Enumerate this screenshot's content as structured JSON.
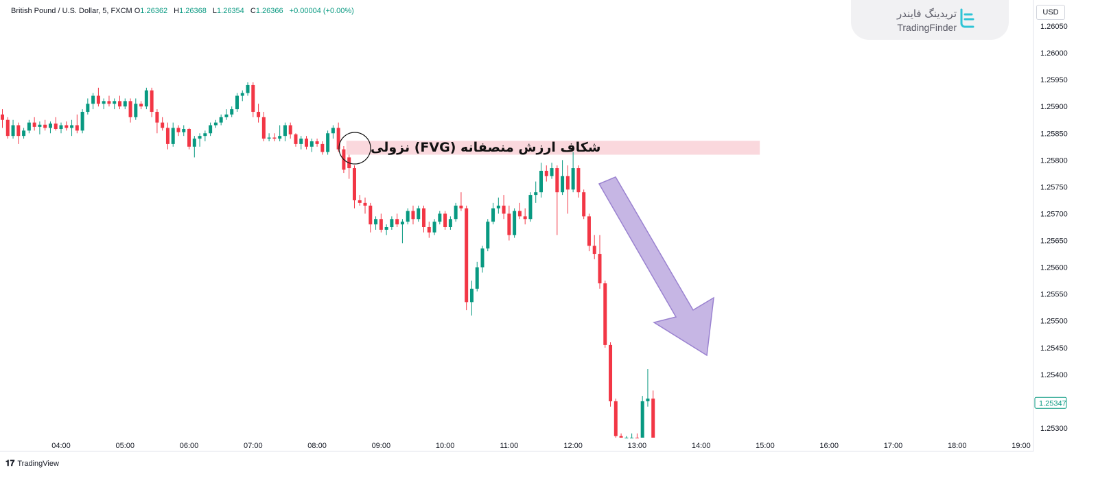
{
  "header": {
    "symbol": "British Pound / U.S. Dollar, 5, FXCM",
    "open_label": "O",
    "open": "1.26362",
    "high_label": "H",
    "high": "1.26368",
    "low_label": "L",
    "low": "1.26354",
    "close_label": "C",
    "close": "1.26366",
    "change": "+0.00004 (+0.00%)"
  },
  "brand": {
    "name_fa": "تریدینگ فایندر",
    "name_en": "TradingFinder"
  },
  "currency": "USD",
  "footer": {
    "logo": "TradingView"
  },
  "annotation": {
    "text": "شکاف ارزش منصفانه (FVG) نزولی"
  },
  "colors": {
    "up": "#089981",
    "down": "#f23645",
    "fvg": "#f8c8cf",
    "arrow": "#b39ddb",
    "grid": "#ffffff"
  },
  "chart_data": {
    "type": "candlestick",
    "ylim": [
      1.2528,
      1.2608
    ],
    "y_ticks": [
      "1.26050",
      "1.26000",
      "1.25950",
      "1.25900",
      "1.25850",
      "1.25800",
      "1.25750",
      "1.25700",
      "1.25650",
      "1.25600",
      "1.25550",
      "1.25500",
      "1.25450",
      "1.25400",
      "1.25300"
    ],
    "x_ticks": [
      "04:00",
      "05:00",
      "06:00",
      "07:00",
      "08:00",
      "09:00",
      "10:00",
      "11:00",
      "12:00",
      "13:00",
      "14:00",
      "15:00",
      "16:00",
      "17:00",
      "18:00",
      "19:00"
    ],
    "last_price": "1.25347",
    "fvg_zone": {
      "start": "08:30",
      "end": "14:55",
      "top": 1.25836,
      "bottom": 1.2581
    },
    "candles": [
      {
        "t": "03:05",
        "o": 1.25885,
        "h": 1.25895,
        "l": 1.2586,
        "c": 1.25875
      },
      {
        "t": "03:10",
        "o": 1.25875,
        "h": 1.2588,
        "l": 1.2584,
        "c": 1.25845
      },
      {
        "t": "03:15",
        "o": 1.25845,
        "h": 1.25875,
        "l": 1.2584,
        "c": 1.25865
      },
      {
        "t": "03:20",
        "o": 1.25865,
        "h": 1.2587,
        "l": 1.2583,
        "c": 1.25845
      },
      {
        "t": "03:25",
        "o": 1.25845,
        "h": 1.2586,
        "l": 1.2584,
        "c": 1.25855
      },
      {
        "t": "03:30",
        "o": 1.25855,
        "h": 1.25875,
        "l": 1.2585,
        "c": 1.2587
      },
      {
        "t": "03:35",
        "o": 1.2587,
        "h": 1.2588,
        "l": 1.25855,
        "c": 1.25862
      },
      {
        "t": "03:40",
        "o": 1.25862,
        "h": 1.25872,
        "l": 1.25848,
        "c": 1.25866
      },
      {
        "t": "03:45",
        "o": 1.25866,
        "h": 1.25875,
        "l": 1.25855,
        "c": 1.2586
      },
      {
        "t": "03:50",
        "o": 1.2586,
        "h": 1.25872,
        "l": 1.2585,
        "c": 1.25868
      },
      {
        "t": "03:55",
        "o": 1.25868,
        "h": 1.2588,
        "l": 1.25855,
        "c": 1.25858
      },
      {
        "t": "04:00",
        "o": 1.25858,
        "h": 1.2587,
        "l": 1.2585,
        "c": 1.25865
      },
      {
        "t": "04:05",
        "o": 1.25865,
        "h": 1.25872,
        "l": 1.25855,
        "c": 1.2586
      },
      {
        "t": "04:10",
        "o": 1.2586,
        "h": 1.25875,
        "l": 1.25845,
        "c": 1.25865
      },
      {
        "t": "04:15",
        "o": 1.25865,
        "h": 1.25885,
        "l": 1.2585,
        "c": 1.25855
      },
      {
        "t": "04:20",
        "o": 1.25855,
        "h": 1.25895,
        "l": 1.2585,
        "c": 1.2589
      },
      {
        "t": "04:25",
        "o": 1.2589,
        "h": 1.25915,
        "l": 1.25885,
        "c": 1.25905
      },
      {
        "t": "04:30",
        "o": 1.25905,
        "h": 1.25925,
        "l": 1.25895,
        "c": 1.2592
      },
      {
        "t": "04:35",
        "o": 1.2592,
        "h": 1.25935,
        "l": 1.259,
        "c": 1.25905
      },
      {
        "t": "04:40",
        "o": 1.25905,
        "h": 1.25915,
        "l": 1.25895,
        "c": 1.2591
      },
      {
        "t": "04:45",
        "o": 1.2591,
        "h": 1.2592,
        "l": 1.259,
        "c": 1.25905
      },
      {
        "t": "04:50",
        "o": 1.25905,
        "h": 1.25915,
        "l": 1.25895,
        "c": 1.2591
      },
      {
        "t": "04:55",
        "o": 1.2591,
        "h": 1.2592,
        "l": 1.25895,
        "c": 1.259
      },
      {
        "t": "05:00",
        "o": 1.259,
        "h": 1.25915,
        "l": 1.25895,
        "c": 1.2591
      },
      {
        "t": "05:05",
        "o": 1.2591,
        "h": 1.25915,
        "l": 1.2587,
        "c": 1.2588
      },
      {
        "t": "05:10",
        "o": 1.2588,
        "h": 1.25915,
        "l": 1.25875,
        "c": 1.25905
      },
      {
        "t": "05:15",
        "o": 1.25905,
        "h": 1.2591,
        "l": 1.25895,
        "c": 1.259
      },
      {
        "t": "05:20",
        "o": 1.259,
        "h": 1.25935,
        "l": 1.25895,
        "c": 1.2593
      },
      {
        "t": "05:25",
        "o": 1.2593,
        "h": 1.25935,
        "l": 1.2588,
        "c": 1.2589
      },
      {
        "t": "05:30",
        "o": 1.2589,
        "h": 1.25895,
        "l": 1.2585,
        "c": 1.2587
      },
      {
        "t": "05:35",
        "o": 1.2587,
        "h": 1.2588,
        "l": 1.25855,
        "c": 1.2586
      },
      {
        "t": "05:40",
        "o": 1.2586,
        "h": 1.2587,
        "l": 1.2582,
        "c": 1.2583
      },
      {
        "t": "05:45",
        "o": 1.2583,
        "h": 1.2587,
        "l": 1.25825,
        "c": 1.2586
      },
      {
        "t": "05:50",
        "o": 1.2586,
        "h": 1.25865,
        "l": 1.25845,
        "c": 1.25852
      },
      {
        "t": "05:55",
        "o": 1.25852,
        "h": 1.25865,
        "l": 1.25845,
        "c": 1.25858
      },
      {
        "t": "06:00",
        "o": 1.25858,
        "h": 1.2586,
        "l": 1.2582,
        "c": 1.25825
      },
      {
        "t": "06:05",
        "o": 1.25825,
        "h": 1.25845,
        "l": 1.25805,
        "c": 1.2584
      },
      {
        "t": "06:10",
        "o": 1.2584,
        "h": 1.2585,
        "l": 1.25825,
        "c": 1.25845
      },
      {
        "t": "06:15",
        "o": 1.25845,
        "h": 1.25855,
        "l": 1.25835,
        "c": 1.2585
      },
      {
        "t": "06:20",
        "o": 1.2585,
        "h": 1.2587,
        "l": 1.25845,
        "c": 1.25865
      },
      {
        "t": "06:25",
        "o": 1.25865,
        "h": 1.25875,
        "l": 1.2586,
        "c": 1.2587
      },
      {
        "t": "06:30",
        "o": 1.2587,
        "h": 1.25885,
        "l": 1.25865,
        "c": 1.2588
      },
      {
        "t": "06:35",
        "o": 1.2588,
        "h": 1.25895,
        "l": 1.25875,
        "c": 1.25885
      },
      {
        "t": "06:40",
        "o": 1.25885,
        "h": 1.259,
        "l": 1.2588,
        "c": 1.25895
      },
      {
        "t": "06:45",
        "o": 1.25895,
        "h": 1.25925,
        "l": 1.2589,
        "c": 1.2592
      },
      {
        "t": "06:50",
        "o": 1.2592,
        "h": 1.2593,
        "l": 1.2591,
        "c": 1.25925
      },
      {
        "t": "06:55",
        "o": 1.25925,
        "h": 1.25945,
        "l": 1.2592,
        "c": 1.2594
      },
      {
        "t": "07:00",
        "o": 1.2594,
        "h": 1.25945,
        "l": 1.2588,
        "c": 1.2589
      },
      {
        "t": "07:05",
        "o": 1.2589,
        "h": 1.25905,
        "l": 1.2587,
        "c": 1.2588
      },
      {
        "t": "07:10",
        "o": 1.2588,
        "h": 1.2589,
        "l": 1.25835,
        "c": 1.2584
      },
      {
        "t": "07:15",
        "o": 1.2584,
        "h": 1.2585,
        "l": 1.25835,
        "c": 1.25842
      },
      {
        "t": "07:20",
        "o": 1.25842,
        "h": 1.2585,
        "l": 1.25835,
        "c": 1.2584
      },
      {
        "t": "07:25",
        "o": 1.2584,
        "h": 1.25865,
        "l": 1.25835,
        "c": 1.25845
      },
      {
        "t": "07:30",
        "o": 1.25845,
        "h": 1.2587,
        "l": 1.25835,
        "c": 1.25865
      },
      {
        "t": "07:35",
        "o": 1.25865,
        "h": 1.2587,
        "l": 1.2584,
        "c": 1.25848
      },
      {
        "t": "07:40",
        "o": 1.25848,
        "h": 1.2585,
        "l": 1.25825,
        "c": 1.2583
      },
      {
        "t": "07:45",
        "o": 1.2583,
        "h": 1.25845,
        "l": 1.2582,
        "c": 1.2584
      },
      {
        "t": "07:50",
        "o": 1.2584,
        "h": 1.25845,
        "l": 1.2582,
        "c": 1.25825
      },
      {
        "t": "07:55",
        "o": 1.25825,
        "h": 1.2584,
        "l": 1.25815,
        "c": 1.25835
      },
      {
        "t": "08:00",
        "o": 1.25835,
        "h": 1.2584,
        "l": 1.25825,
        "c": 1.2583
      },
      {
        "t": "08:05",
        "o": 1.2583,
        "h": 1.25835,
        "l": 1.2581,
        "c": 1.25815
      },
      {
        "t": "08:10",
        "o": 1.25815,
        "h": 1.25855,
        "l": 1.2581,
        "c": 1.2585
      },
      {
        "t": "08:15",
        "o": 1.2585,
        "h": 1.25865,
        "l": 1.2584,
        "c": 1.2586
      },
      {
        "t": "08:20",
        "o": 1.2586,
        "h": 1.2587,
        "l": 1.25815,
        "c": 1.2582
      },
      {
        "t": "08:25",
        "o": 1.2582,
        "h": 1.25826,
        "l": 1.25776,
        "c": 1.25782
      },
      {
        "t": "08:30",
        "o": 1.25805,
        "h": 1.2581,
        "l": 1.25765,
        "c": 1.25785
      },
      {
        "t": "08:35",
        "o": 1.25785,
        "h": 1.2579,
        "l": 1.2571,
        "c": 1.25725
      },
      {
        "t": "08:40",
        "o": 1.25725,
        "h": 1.25735,
        "l": 1.25715,
        "c": 1.2572
      },
      {
        "t": "08:45",
        "o": 1.2572,
        "h": 1.2573,
        "l": 1.257,
        "c": 1.25715
      },
      {
        "t": "08:50",
        "o": 1.25715,
        "h": 1.2572,
        "l": 1.25665,
        "c": 1.2568
      },
      {
        "t": "08:55",
        "o": 1.2568,
        "h": 1.25695,
        "l": 1.2567,
        "c": 1.2569
      },
      {
        "t": "09:00",
        "o": 1.2569,
        "h": 1.257,
        "l": 1.25665,
        "c": 1.2567
      },
      {
        "t": "09:05",
        "o": 1.2567,
        "h": 1.2568,
        "l": 1.2566,
        "c": 1.25675
      },
      {
        "t": "09:10",
        "o": 1.25675,
        "h": 1.25695,
        "l": 1.2567,
        "c": 1.2569
      },
      {
        "t": "09:15",
        "o": 1.2569,
        "h": 1.257,
        "l": 1.25675,
        "c": 1.2568
      },
      {
        "t": "09:20",
        "o": 1.2568,
        "h": 1.2569,
        "l": 1.25645,
        "c": 1.25685
      },
      {
        "t": "09:25",
        "o": 1.25685,
        "h": 1.2571,
        "l": 1.2568,
        "c": 1.25705
      },
      {
        "t": "09:30",
        "o": 1.25705,
        "h": 1.25715,
        "l": 1.2568,
        "c": 1.2569
      },
      {
        "t": "09:35",
        "o": 1.2569,
        "h": 1.25715,
        "l": 1.25685,
        "c": 1.2571
      },
      {
        "t": "09:40",
        "o": 1.2571,
        "h": 1.25715,
        "l": 1.25665,
        "c": 1.25675
      },
      {
        "t": "09:45",
        "o": 1.25675,
        "h": 1.25685,
        "l": 1.25655,
        "c": 1.25665
      },
      {
        "t": "09:50",
        "o": 1.25665,
        "h": 1.2569,
        "l": 1.2566,
        "c": 1.25685
      },
      {
        "t": "09:55",
        "o": 1.25685,
        "h": 1.25705,
        "l": 1.2568,
        "c": 1.257
      },
      {
        "t": "10:00",
        "o": 1.257,
        "h": 1.25705,
        "l": 1.2567,
        "c": 1.25675
      },
      {
        "t": "10:05",
        "o": 1.25675,
        "h": 1.25695,
        "l": 1.2567,
        "c": 1.2569
      },
      {
        "t": "10:10",
        "o": 1.2569,
        "h": 1.2572,
        "l": 1.25685,
        "c": 1.25715
      },
      {
        "t": "10:15",
        "o": 1.25715,
        "h": 1.2574,
        "l": 1.25705,
        "c": 1.2571
      },
      {
        "t": "10:20",
        "o": 1.2571,
        "h": 1.25715,
        "l": 1.2552,
        "c": 1.25535
      },
      {
        "t": "10:25",
        "o": 1.25535,
        "h": 1.25575,
        "l": 1.2551,
        "c": 1.2556
      },
      {
        "t": "10:30",
        "o": 1.2556,
        "h": 1.2561,
        "l": 1.25555,
        "c": 1.256
      },
      {
        "t": "10:35",
        "o": 1.256,
        "h": 1.2564,
        "l": 1.2559,
        "c": 1.25635
      },
      {
        "t": "10:40",
        "o": 1.25635,
        "h": 1.2569,
        "l": 1.2563,
        "c": 1.25685
      },
      {
        "t": "10:45",
        "o": 1.25685,
        "h": 1.2572,
        "l": 1.2568,
        "c": 1.2571
      },
      {
        "t": "10:50",
        "o": 1.2571,
        "h": 1.2573,
        "l": 1.257,
        "c": 1.25715
      },
      {
        "t": "10:55",
        "o": 1.25715,
        "h": 1.25735,
        "l": 1.2569,
        "c": 1.257
      },
      {
        "t": "11:00",
        "o": 1.257,
        "h": 1.25715,
        "l": 1.2565,
        "c": 1.2566
      },
      {
        "t": "11:05",
        "o": 1.2566,
        "h": 1.2571,
        "l": 1.25655,
        "c": 1.25705
      },
      {
        "t": "11:10",
        "o": 1.25705,
        "h": 1.2572,
        "l": 1.2569,
        "c": 1.25695
      },
      {
        "t": "11:15",
        "o": 1.25695,
        "h": 1.2571,
        "l": 1.2568,
        "c": 1.2569
      },
      {
        "t": "11:20",
        "o": 1.2569,
        "h": 1.2574,
        "l": 1.25685,
        "c": 1.25735
      },
      {
        "t": "11:25",
        "o": 1.25735,
        "h": 1.2576,
        "l": 1.2572,
        "c": 1.2574
      },
      {
        "t": "11:30",
        "o": 1.2574,
        "h": 1.25795,
        "l": 1.2573,
        "c": 1.2578
      },
      {
        "t": "11:35",
        "o": 1.2578,
        "h": 1.2579,
        "l": 1.2576,
        "c": 1.2577
      },
      {
        "t": "11:40",
        "o": 1.2577,
        "h": 1.25795,
        "l": 1.25765,
        "c": 1.25785
      },
      {
        "t": "11:45",
        "o": 1.25785,
        "h": 1.2579,
        "l": 1.2566,
        "c": 1.2574
      },
      {
        "t": "11:50",
        "o": 1.2574,
        "h": 1.258,
        "l": 1.25735,
        "c": 1.2577
      },
      {
        "t": "11:55",
        "o": 1.2577,
        "h": 1.2579,
        "l": 1.257,
        "c": 1.25745
      },
      {
        "t": "12:00",
        "o": 1.25745,
        "h": 1.25815,
        "l": 1.2574,
        "c": 1.25785
      },
      {
        "t": "12:05",
        "o": 1.25785,
        "h": 1.2579,
        "l": 1.2573,
        "c": 1.2574
      },
      {
        "t": "12:10",
        "o": 1.2574,
        "h": 1.25745,
        "l": 1.2569,
        "c": 1.25695
      },
      {
        "t": "12:15",
        "o": 1.25695,
        "h": 1.257,
        "l": 1.2563,
        "c": 1.2564
      },
      {
        "t": "12:20",
        "o": 1.2564,
        "h": 1.2566,
        "l": 1.25615,
        "c": 1.25625
      },
      {
        "t": "12:25",
        "o": 1.25625,
        "h": 1.2566,
        "l": 1.2556,
        "c": 1.2557
      },
      {
        "t": "12:30",
        "o": 1.2557,
        "h": 1.25575,
        "l": 1.2545,
        "c": 1.25455
      },
      {
        "t": "12:35",
        "o": 1.25455,
        "h": 1.2546,
        "l": 1.2534,
        "c": 1.2535
      },
      {
        "t": "12:40",
        "o": 1.2535,
        "h": 1.25355,
        "l": 1.2528,
        "c": 1.25285
      },
      {
        "t": "12:45",
        "o": 1.25285,
        "h": 1.2529,
        "l": 1.2527,
        "c": 1.25275
      },
      {
        "t": "12:50",
        "o": 1.25275,
        "h": 1.25285,
        "l": 1.2527,
        "c": 1.2528
      },
      {
        "t": "12:55",
        "o": 1.2528,
        "h": 1.2529,
        "l": 1.25275,
        "c": 1.25282
      },
      {
        "t": "13:00",
        "o": 1.25282,
        "h": 1.2529,
        "l": 1.2527,
        "c": 1.25275
      },
      {
        "t": "13:05",
        "o": 1.25275,
        "h": 1.2536,
        "l": 1.2527,
        "c": 1.2535
      },
      {
        "t": "13:10",
        "o": 1.2535,
        "h": 1.2541,
        "l": 1.2534,
        "c": 1.25355
      },
      {
        "t": "13:15",
        "o": 1.25355,
        "h": 1.2537,
        "l": 1.2527,
        "c": 1.2528
      }
    ]
  }
}
